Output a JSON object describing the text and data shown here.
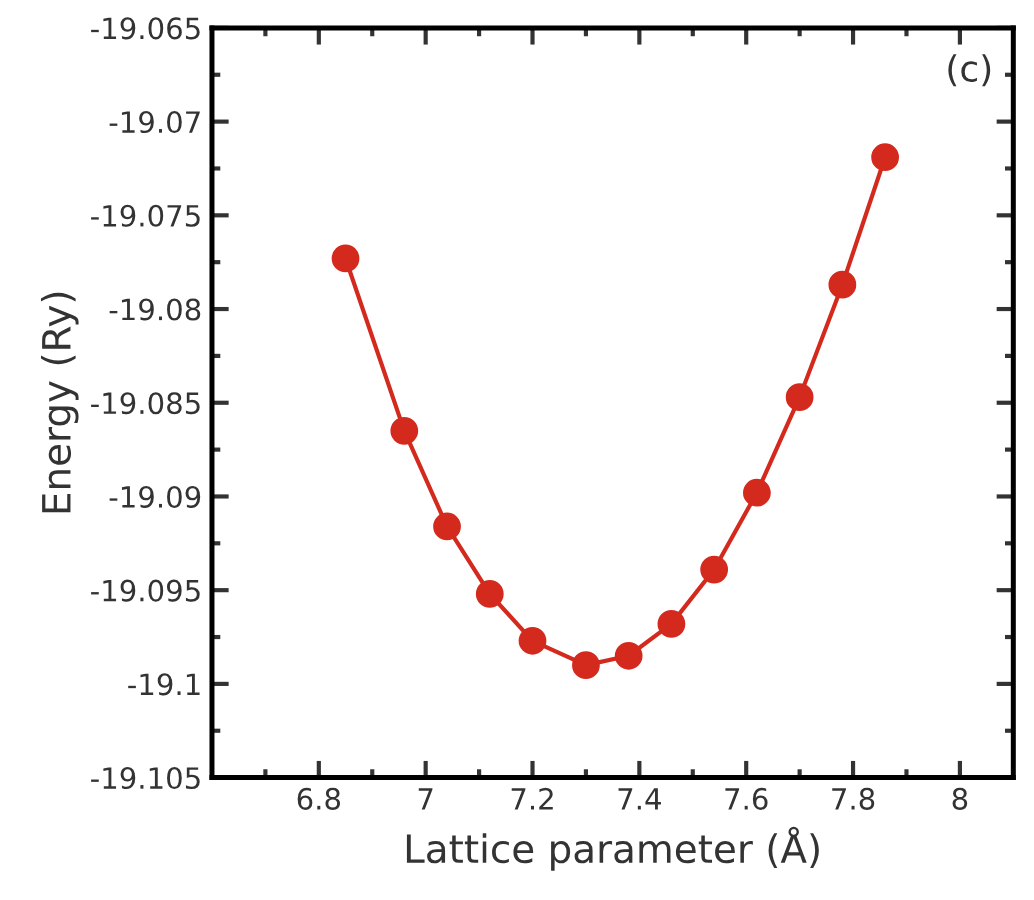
{
  "chart_data": {
    "type": "line",
    "xlabel": "Lattice parameter (Å)",
    "ylabel": "Energy (Ry)",
    "annotations": [
      "(c)"
    ],
    "x": [
      6.85,
      6.96,
      7.04,
      7.12,
      7.2,
      7.3,
      7.38,
      7.46,
      7.54,
      7.62,
      7.7,
      7.78,
      7.86
    ],
    "series": [
      {
        "color": "#d42a1e",
        "values": [
          -19.0773,
          -19.0865,
          -19.0916,
          -19.0952,
          -19.0977,
          -19.099,
          -19.0985,
          -19.0968,
          -19.0939,
          -19.0898,
          -19.0847,
          -19.0787,
          -19.0719
        ]
      }
    ],
    "xlim": [
      6.6,
      8.1
    ],
    "xticks": [
      {
        "value": 6.7,
        "label": null
      },
      6.8,
      {
        "value": 6.9,
        "label": null
      },
      7,
      {
        "value": 7.1,
        "label": null
      },
      7.2,
      {
        "value": 7.3,
        "label": null
      },
      7.4,
      {
        "value": 7.5,
        "label": null
      },
      7.6,
      {
        "value": 7.7,
        "label": null
      },
      7.8,
      {
        "value": 7.9,
        "label": null
      },
      8
    ],
    "ylim": [
      -19.105,
      -19.065
    ],
    "yticks": [
      -19.105,
      {
        "value": -19.1025,
        "label": null
      },
      -19.1,
      {
        "value": -19.0975,
        "label": null
      },
      -19.095,
      {
        "value": -19.0925,
        "label": null
      },
      -19.09,
      {
        "value": -19.0875,
        "label": null
      },
      -19.085,
      {
        "value": -19.0825,
        "label": null
      },
      -19.08,
      {
        "value": -19.0775,
        "label": null
      },
      -19.075,
      {
        "value": -19.0725,
        "label": null
      },
      -19.07,
      {
        "value": -19.0675,
        "label": null
      },
      -19.065
    ],
    "marker": "circle",
    "line_style": "solid",
    "grid": false,
    "legend": false
  }
}
